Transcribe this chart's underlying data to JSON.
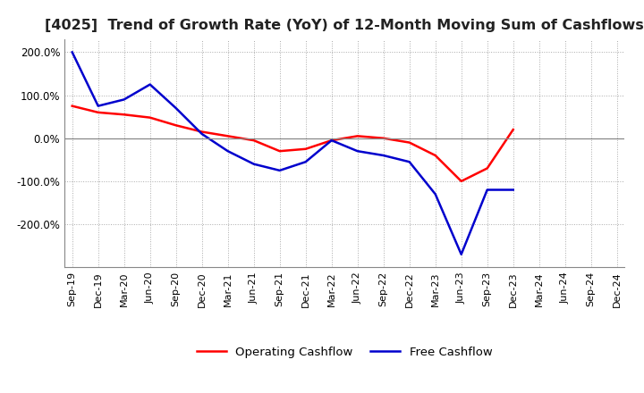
{
  "title": "[4025]  Trend of Growth Rate (YoY) of 12-Month Moving Sum of Cashflows",
  "title_fontsize": 11.5,
  "x_labels": [
    "Sep-19",
    "Dec-19",
    "Mar-20",
    "Jun-20",
    "Sep-20",
    "Dec-20",
    "Mar-21",
    "Jun-21",
    "Sep-21",
    "Dec-21",
    "Mar-22",
    "Jun-22",
    "Sep-22",
    "Dec-22",
    "Mar-23",
    "Jun-23",
    "Sep-23",
    "Dec-23",
    "Mar-24",
    "Jun-24",
    "Sep-24",
    "Dec-24"
  ],
  "operating_cashflow": [
    75,
    60,
    55,
    48,
    30,
    15,
    5,
    -5,
    -30,
    -25,
    -5,
    5,
    0,
    -10,
    -40,
    -100,
    -70,
    20,
    null,
    null,
    null,
    null
  ],
  "free_cashflow": [
    200,
    75,
    90,
    125,
    70,
    10,
    -30,
    -60,
    -75,
    -55,
    -5,
    -30,
    -40,
    -55,
    -130,
    -270,
    -120,
    -120,
    null,
    null,
    null,
    null
  ],
  "operating_color": "#ff0000",
  "free_color": "#0000cd",
  "ylim": [
    -300,
    230
  ],
  "yticks": [
    -200,
    -100,
    0,
    100,
    200
  ],
  "background_color": "#ffffff",
  "grid_color": "#aaaaaa",
  "legend_loc": "lower center"
}
